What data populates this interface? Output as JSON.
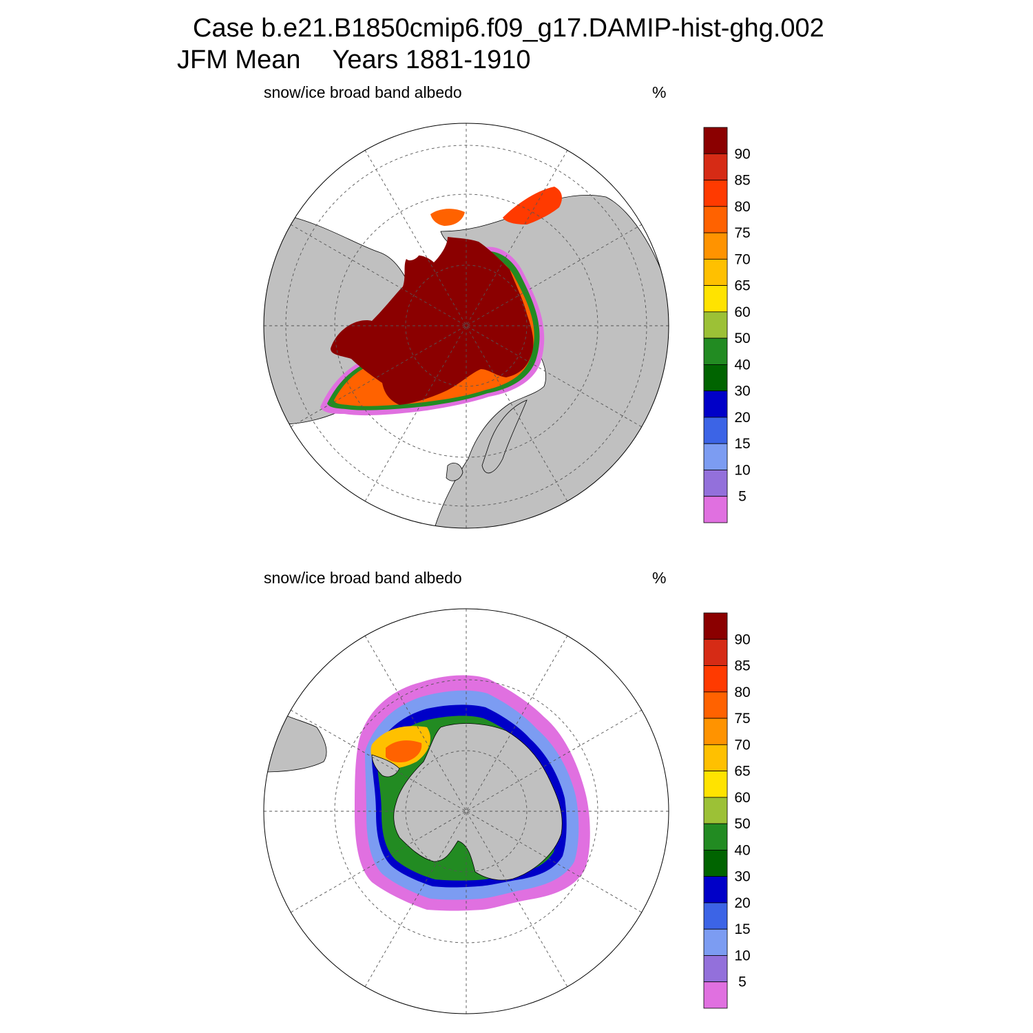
{
  "title": {
    "case_line": "Case b.e21.B1850cmip6.f09_g17.DAMIP-hist-ghg.002",
    "season": "JFM Mean",
    "years": "Years 1881-1910"
  },
  "panels": [
    {
      "id": "north",
      "hemisphere": "Northern Hemisphere",
      "label": "snow/ice broad band albedo",
      "unit": "%"
    },
    {
      "id": "south",
      "hemisphere": "Southern Hemisphere",
      "label": "snow/ice broad band albedo",
      "unit": "%"
    }
  ],
  "colorbar": {
    "levels": [
      "90",
      "85",
      "80",
      "75",
      "70",
      "65",
      "60",
      "50",
      "40",
      "30",
      "20",
      "15",
      "10",
      "5"
    ],
    "colors": [
      "#8b0000",
      "#d62b15",
      "#ff3a00",
      "#ff6200",
      "#ff9300",
      "#ffc000",
      "#ffe300",
      "#9cc136",
      "#228b22",
      "#006400",
      "#0000c8",
      "#3c64e6",
      "#7c9cf2",
      "#9370db",
      "#e070e0"
    ]
  },
  "colors": {
    "land": "#c0c0c0",
    "ocean": "#ffffff",
    "grid": "#555555"
  }
}
